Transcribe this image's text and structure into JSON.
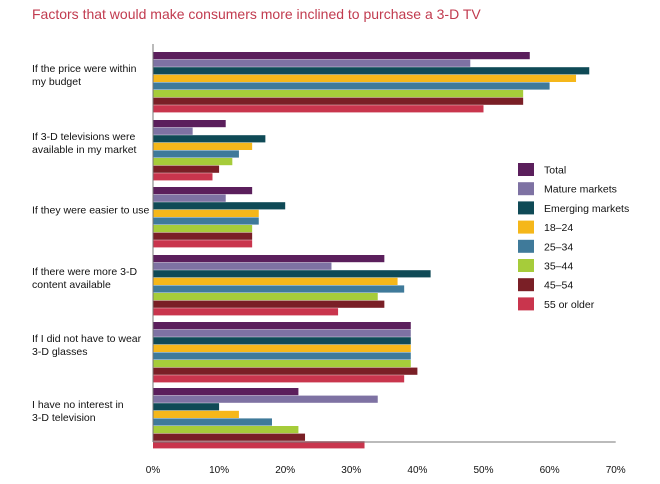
{
  "chart_data": {
    "type": "bar",
    "orientation": "horizontal",
    "title": "Factors that would make consumers more inclined to purchase a 3-D TV",
    "categories": [
      [
        "If the price were within",
        "my budget"
      ],
      [
        "If 3-D televisions were",
        "available in my market"
      ],
      [
        "If they were easier to use"
      ],
      [
        "If there were more 3-D",
        "content available"
      ],
      [
        "If I did not have to wear",
        "3-D glasses"
      ],
      [
        "I have no interest in",
        "3-D television"
      ]
    ],
    "series": [
      {
        "name": "Total",
        "color": "#5b1f5c",
        "values": [
          57,
          11,
          15,
          35,
          39,
          22
        ]
      },
      {
        "name": "Mature markets",
        "color": "#7e72a3",
        "values": [
          48,
          6,
          11,
          27,
          39,
          34
        ]
      },
      {
        "name": "Emerging markets",
        "color": "#0f4a56",
        "values": [
          66,
          17,
          20,
          42,
          39,
          10
        ]
      },
      {
        "name": "18–24",
        "color": "#f5b71a",
        "values": [
          64,
          15,
          16,
          37,
          39,
          13
        ]
      },
      {
        "name": "25–34",
        "color": "#3f7a9a",
        "values": [
          60,
          13,
          16,
          38,
          39,
          18
        ]
      },
      {
        "name": "35–44",
        "color": "#a6cc3a",
        "values": [
          56,
          12,
          15,
          34,
          39,
          22
        ]
      },
      {
        "name": "45–54",
        "color": "#7a1f26",
        "values": [
          56,
          10,
          15,
          35,
          40,
          23
        ]
      },
      {
        "name": "55 or older",
        "color": "#c9354d",
        "values": [
          50,
          9,
          15,
          28,
          38,
          32
        ]
      }
    ],
    "x_ticks": [
      "0%",
      "10%",
      "20%",
      "30%",
      "40%",
      "50%",
      "60%",
      "70%"
    ],
    "xlim": [
      0,
      70
    ],
    "legend_position": "right",
    "grid": false
  }
}
